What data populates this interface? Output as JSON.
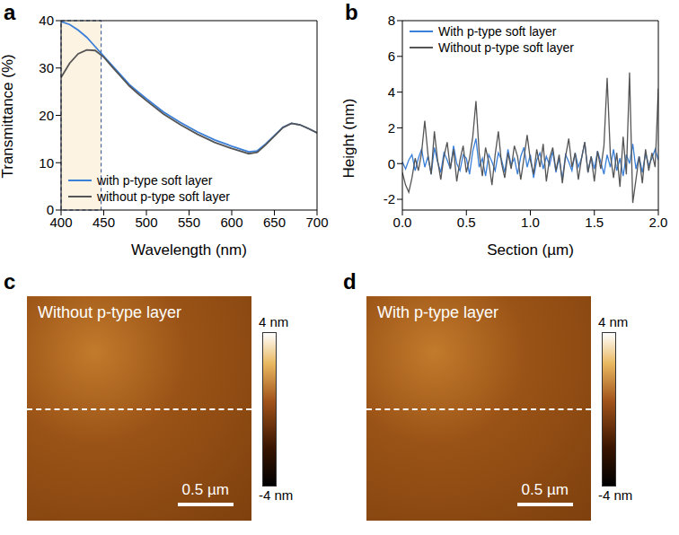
{
  "chart_data": [
    {
      "panel": "a",
      "type": "line",
      "xlabel": "Wavelength (nm)",
      "ylabel": "Transmittance (%)",
      "xlim": [
        400,
        700
      ],
      "xticks": [
        400,
        450,
        500,
        550,
        600,
        650,
        700
      ],
      "ylim": [
        0,
        40
      ],
      "yticks": [
        0,
        10,
        20,
        30,
        40
      ],
      "grid": false,
      "legend": "lower left",
      "highlight_x": [
        400,
        447
      ],
      "x": [
        400,
        410,
        420,
        430,
        440,
        450,
        460,
        470,
        480,
        490,
        500,
        520,
        540,
        560,
        580,
        600,
        620,
        630,
        640,
        660,
        670,
        680,
        690,
        700
      ],
      "series": [
        {
          "name": "with p-type soft layer",
          "color": "#3a7fd8",
          "values": [
            39.8,
            39.2,
            38,
            36.5,
            34.5,
            32.5,
            30.5,
            28.5,
            26.5,
            25,
            23.5,
            20.7,
            18.5,
            16.5,
            14.8,
            13.5,
            12.3,
            12.5,
            14,
            17.5,
            18.3,
            18,
            17.2,
            16.3
          ]
        },
        {
          "name": "without p-type soft layer",
          "color": "#555555",
          "values": [
            28,
            31,
            33,
            33.8,
            33.7,
            32.3,
            30.2,
            28.2,
            26.2,
            24.6,
            23.1,
            20.3,
            18,
            16,
            14.3,
            13,
            11.9,
            12.2,
            13.8,
            17.4,
            18.3,
            18,
            17.2,
            16.3
          ]
        }
      ]
    },
    {
      "panel": "b",
      "type": "line",
      "xlabel": "Section (µm)",
      "ylabel": "Height (nm)",
      "xlim": [
        0,
        2
      ],
      "xticks": [
        {
          "value": 0,
          "label": "0.0"
        },
        0.5,
        {
          "value": 1,
          "label": "1.0"
        },
        1.5,
        {
          "value": 2,
          "label": "2.0"
        }
      ],
      "ylim": [
        -2.6,
        8
      ],
      "yticks": [
        -2,
        0,
        2,
        4,
        6,
        8
      ],
      "grid": false,
      "legend": "upper left",
      "x": [
        0,
        0.025,
        0.05,
        0.075,
        0.1,
        0.125,
        0.15,
        0.175,
        0.2,
        0.225,
        0.25,
        0.275,
        0.3,
        0.325,
        0.35,
        0.375,
        0.4,
        0.425,
        0.45,
        0.475,
        0.5,
        0.525,
        0.55,
        0.575,
        0.6,
        0.625,
        0.65,
        0.675,
        0.7,
        0.725,
        0.75,
        0.775,
        0.8,
        0.825,
        0.85,
        0.875,
        0.9,
        0.925,
        0.95,
        0.975,
        1,
        1.025,
        1.05,
        1.075,
        1.1,
        1.125,
        1.15,
        1.175,
        1.2,
        1.225,
        1.25,
        1.275,
        1.3,
        1.325,
        1.35,
        1.375,
        1.4,
        1.425,
        1.45,
        1.475,
        1.5,
        1.525,
        1.55,
        1.575,
        1.6,
        1.625,
        1.65,
        1.675,
        1.7,
        1.725,
        1.75,
        1.775,
        1.8,
        1.825,
        1.85,
        1.875,
        1.9,
        1.925,
        1.95,
        1.975,
        2
      ],
      "series": [
        {
          "name": "With p-type soft layer",
          "color": "#3a7fd8",
          "values": [
            0.1,
            -0.3,
            0.2,
            0.5,
            -0.4,
            0.3,
            0.8,
            -0.2,
            0.4,
            -0.6,
            0.9,
            0.1,
            -0.5,
            0.6,
            0.2,
            -0.3,
            1.0,
            0.0,
            -0.4,
            0.5,
            0.3,
            -0.6,
            0.7,
            1.4,
            -0.2,
            0.3,
            -0.7,
            0.5,
            0.1,
            -0.4,
            0.6,
            0.2,
            -0.5,
            0.8,
            -0.1,
            0.3,
            -0.6,
            0.4,
            0.9,
            -0.2,
            0.5,
            -0.8,
            0.2,
            0.6,
            -0.3,
            0.4,
            -0.1,
            0.7,
            -0.5,
            0.3,
            -0.9,
            0.5,
            0.1,
            -0.4,
            0.6,
            -0.2,
            0.3,
            1.2,
            -0.5,
            0.4,
            -0.3,
            0.7,
            0.1,
            -0.6,
            0.5,
            -0.2,
            0.8,
            -0.4,
            0.3,
            -0.7,
            0.5,
            0.0,
            1.1,
            -0.3,
            0.4,
            -0.5,
            0.6,
            -0.1,
            0.3,
            0.8,
            0.2
          ]
        },
        {
          "name": "Without p-type soft layer",
          "color": "#555555",
          "values": [
            -0.5,
            -1.2,
            -1.6,
            -0.8,
            0.3,
            -0.4,
            0.6,
            2.4,
            0.5,
            -0.6,
            1.8,
            0.2,
            -0.9,
            0.4,
            1.2,
            -0.3,
            0.8,
            -1.0,
            0.2,
            1.0,
            -0.5,
            0.3,
            1.5,
            3.5,
            0.6,
            -0.7,
            0.9,
            0.1,
            -1.2,
            0.5,
            1.8,
            0.0,
            -0.8,
            0.6,
            -0.3,
            1.0,
            0.4,
            -0.9,
            0.3,
            1.6,
            0.2,
            -0.6,
            0.8,
            -0.2,
            1.1,
            -1.0,
            0.3,
            0.9,
            -0.4,
            0.5,
            -1.1,
            0.4,
            1.4,
            -0.2,
            0.6,
            -0.9,
            0.3,
            1.2,
            -0.5,
            0.4,
            -1.0,
            0.7,
            -0.3,
            1.0,
            4.8,
            0.5,
            -0.8,
            0.6,
            -1.3,
            1.5,
            -0.6,
            5.1,
            -2.2,
            -0.9,
            0.4,
            -1.1,
            0.8,
            -0.4,
            0.6,
            -0.2,
            4.2
          ]
        }
      ]
    },
    {
      "panel": "c",
      "type": "image",
      "title": "Without p-type layer",
      "xlim": [
        0,
        2
      ],
      "scale_bar": {
        "value": 0.5,
        "label": "0.5 µm"
      },
      "colorbar": {
        "range": [
          -4,
          4
        ],
        "ticks": [
          {
            "value": 4,
            "label": "4 nm"
          },
          {
            "value": -4,
            "label": "-4 nm"
          }
        ]
      }
    },
    {
      "panel": "d",
      "type": "image",
      "title": "With p-type layer",
      "xlim": [
        0,
        2
      ],
      "scale_bar": {
        "value": 0.5,
        "label": "0.5 µm"
      },
      "colorbar": {
        "range": [
          -4,
          4
        ],
        "ticks": [
          {
            "value": 4,
            "label": "4 nm"
          },
          {
            "value": -4,
            "label": "-4 nm"
          }
        ]
      }
    }
  ]
}
